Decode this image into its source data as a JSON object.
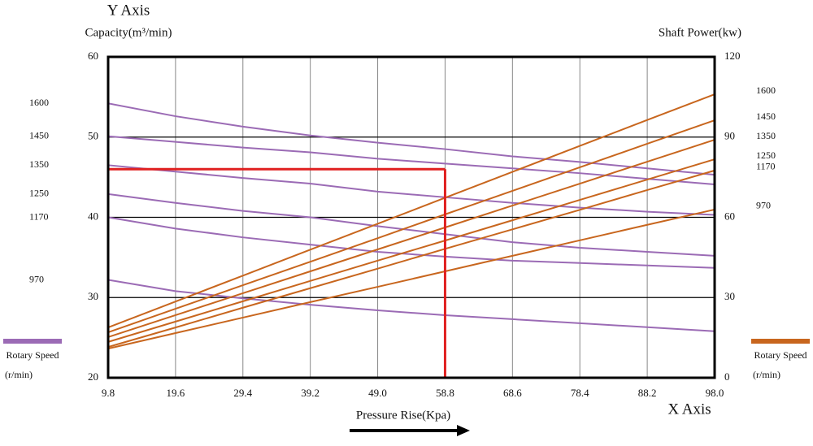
{
  "chart_data": {
    "type": "line",
    "y_axis_title": "Y Axis",
    "y_label": "Capacity(m³/min)",
    "y2_label": "Shaft Power(kw)",
    "x_axis_title": "X Axis",
    "x_label": "Pressure Rise(Kpa)",
    "legend_label": "Rotary Speed",
    "legend_unit": "(r/min)",
    "x": [
      9.8,
      19.6,
      29.4,
      39.2,
      49.0,
      58.8,
      68.6,
      78.4,
      88.2,
      98.0
    ],
    "xlim": [
      9.8,
      98.0
    ],
    "xticks": [
      9.8,
      19.6,
      29.4,
      39.2,
      {
        "value": 49.0,
        "label": "49.0"
      },
      58.8,
      68.6,
      78.4,
      88.2,
      {
        "value": 98.0,
        "label": "98.0"
      }
    ],
    "ylim": [
      20,
      60
    ],
    "yticks": [
      20,
      30,
      40,
      50,
      60
    ],
    "y2lim": [
      0,
      120
    ],
    "y2ticks": [
      0,
      30,
      60,
      90,
      120
    ],
    "grid": true,
    "series": [
      {
        "name": "1600",
        "color": "#9b6bb5",
        "values": [
          54.2,
          52.6,
          51.3,
          50.2,
          49.3,
          48.5,
          47.6,
          46.9,
          46.1,
          45.3
        ]
      },
      {
        "name": "1450",
        "color": "#9b6bb5",
        "values": [
          50.1,
          49.4,
          48.7,
          48.1,
          47.3,
          46.7,
          46.1,
          45.5,
          44.8,
          44.1
        ]
      },
      {
        "name": "1350",
        "color": "#9b6bb5",
        "values": [
          46.5,
          45.7,
          44.9,
          44.2,
          43.2,
          42.5,
          41.8,
          41.2,
          40.7,
          40.3
        ]
      },
      {
        "name": "1250",
        "color": "#9b6bb5",
        "values": [
          42.9,
          41.8,
          40.8,
          40.0,
          38.9,
          37.9,
          36.9,
          36.2,
          35.7,
          35.2
        ]
      },
      {
        "name": "1170",
        "color": "#9b6bb5",
        "values": [
          40.0,
          38.6,
          37.5,
          36.6,
          35.7,
          35.1,
          34.6,
          34.3,
          34.0,
          33.7
        ]
      },
      {
        "name": "970",
        "color": "#9b6bb5",
        "values": [
          32.2,
          30.8,
          29.9,
          29.1,
          28.4,
          27.8,
          27.3,
          26.8,
          26.3,
          25.8
        ]
      },
      {
        "name": "1600",
        "color": "#c8661e",
        "axis": "y2",
        "values": [
          18.8,
          28.5,
          38.2,
          47.9,
          57.6,
          67.3,
          77.0,
          86.7,
          96.4,
          106.0
        ]
      },
      {
        "name": "1450",
        "color": "#c8661e",
        "axis": "y2",
        "values": [
          17.0,
          25.8,
          34.6,
          43.4,
          52.2,
          61.1,
          69.9,
          78.7,
          87.5,
          96.3
        ]
      },
      {
        "name": "1350",
        "color": "#c8661e",
        "axis": "y2",
        "values": [
          15.2,
          23.4,
          31.6,
          39.8,
          48.0,
          56.2,
          64.4,
          72.6,
          80.8,
          89.0
        ]
      },
      {
        "name": "1250",
        "color": "#c8661e",
        "axis": "y2",
        "values": [
          13.4,
          21.0,
          28.6,
          36.2,
          43.8,
          51.3,
          58.9,
          66.5,
          74.1,
          81.7
        ]
      },
      {
        "name": "1170",
        "color": "#c8661e",
        "axis": "y2",
        "values": [
          11.5,
          18.8,
          26.2,
          33.5,
          40.8,
          48.2,
          55.5,
          62.8,
          70.2,
          77.5
        ]
      },
      {
        "name": "970",
        "color": "#c8661e",
        "axis": "y2",
        "values": [
          10.9,
          16.7,
          22.5,
          28.3,
          34.0,
          39.8,
          45.6,
          51.4,
          57.2,
          62.9
        ]
      }
    ],
    "marker": {
      "x": 58.8,
      "y": 46,
      "color": "#e02020"
    }
  }
}
